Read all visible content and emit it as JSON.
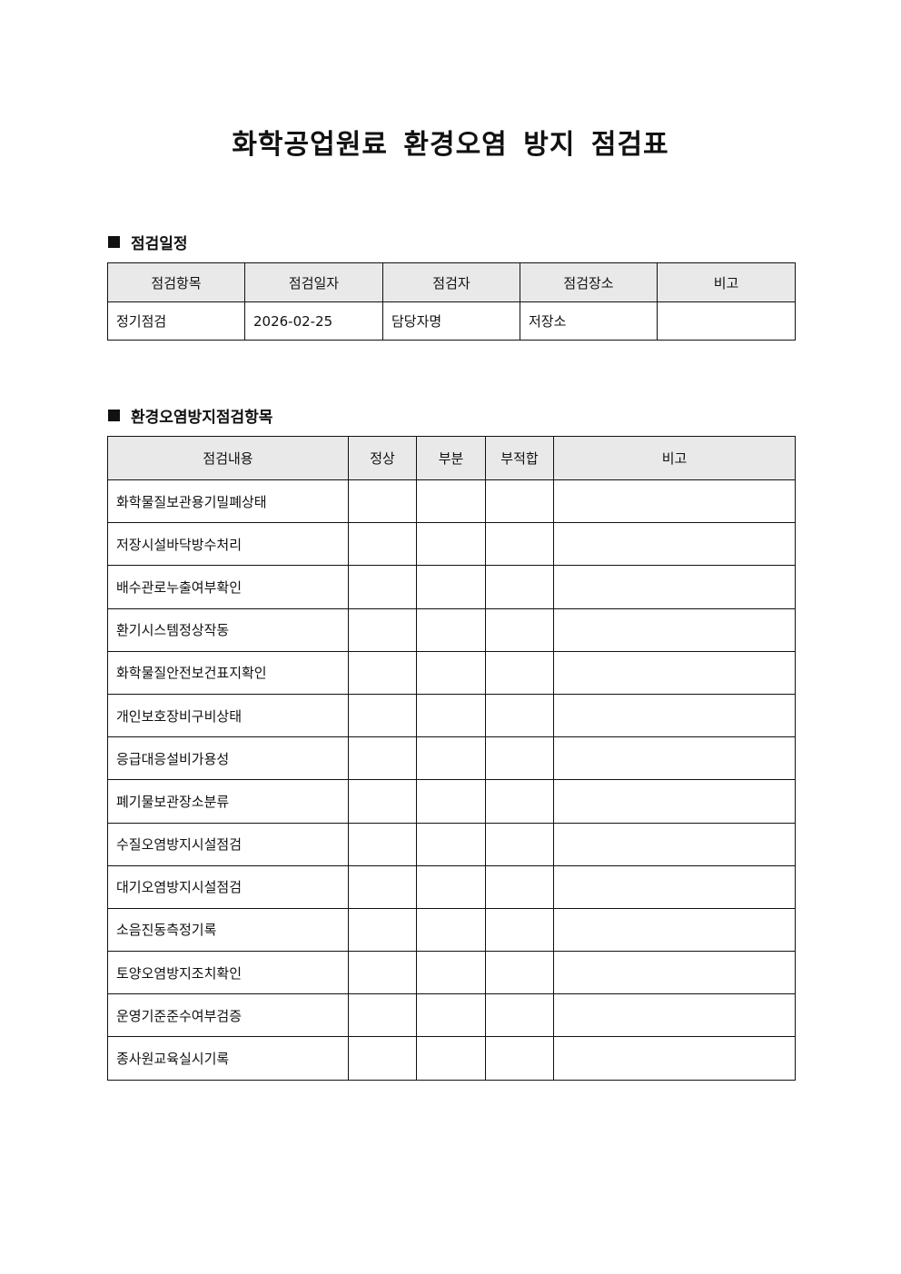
{
  "title": "화학공업원료 환경오염 방지 점검표",
  "schedule": {
    "heading": "점검일정",
    "headers": [
      "점검항목",
      "점검일자",
      "점검자",
      "점검장소",
      "비고"
    ],
    "row": [
      "정기점검",
      "2026-02-25",
      "담당자명",
      "저장소",
      ""
    ]
  },
  "checklist": {
    "heading": "환경오염방지점검항목",
    "headers": [
      "점검내용",
      "정상",
      "부분",
      "부적합",
      "비고"
    ],
    "items": [
      "화학물질보관용기밀폐상태",
      "저장시설바닥방수처리",
      "배수관로누출여부확인",
      "환기시스템정상작동",
      "화학물질안전보건표지확인",
      "개인보호장비구비상태",
      "응급대응설비가용성",
      "폐기물보관장소분류",
      "수질오염방지시설점검",
      "대기오염방지시설점검",
      "소음진동측정기록",
      "토양오염방지조치확인",
      "운영기준준수여부검증",
      "종사원교육실시기록"
    ]
  }
}
